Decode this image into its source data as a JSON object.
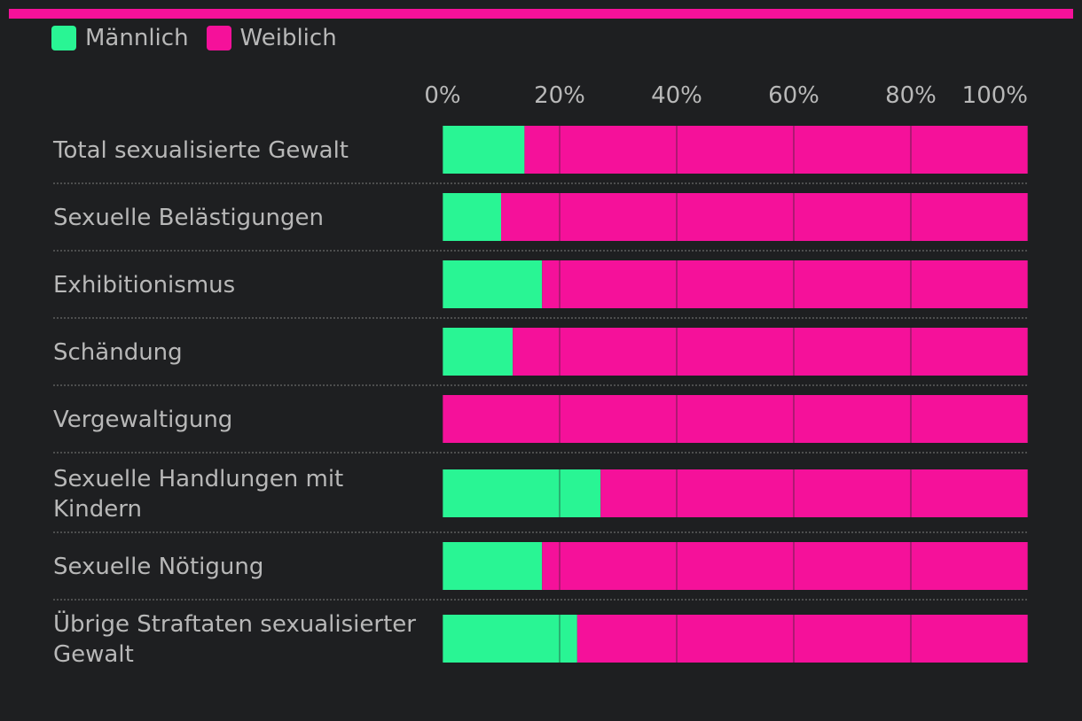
{
  "chart_data": {
    "type": "bar",
    "orientation": "horizontal",
    "stacked": true,
    "categories": [
      [
        "Total sexualisierte Gewalt"
      ],
      [
        "Sexuelle Belästigungen"
      ],
      [
        "Exhibitionismus"
      ],
      [
        "Schändung"
      ],
      [
        "Vergewaltigung"
      ],
      [
        "Sexuelle Handlungen mit",
        "Kindern"
      ],
      [
        "Sexuelle Nötigung"
      ],
      [
        "Übrige Straftaten sexualisierter",
        "Gewalt"
      ]
    ],
    "series": [
      {
        "name": "Männlich",
        "color": "#29f594",
        "values": [
          14,
          10,
          17,
          12,
          0,
          27,
          17,
          23
        ]
      },
      {
        "name": "Weiblich",
        "color": "#f5119a",
        "values": [
          86,
          90,
          83,
          88,
          100,
          73,
          83,
          77
        ]
      }
    ],
    "xticks": [
      "0%",
      "20%",
      "40%",
      "60%",
      "80%",
      "100%"
    ],
    "xtick_values": [
      0,
      20,
      40,
      60,
      80,
      100
    ],
    "xlim": [
      0,
      100
    ],
    "legend_position": "top-left"
  }
}
